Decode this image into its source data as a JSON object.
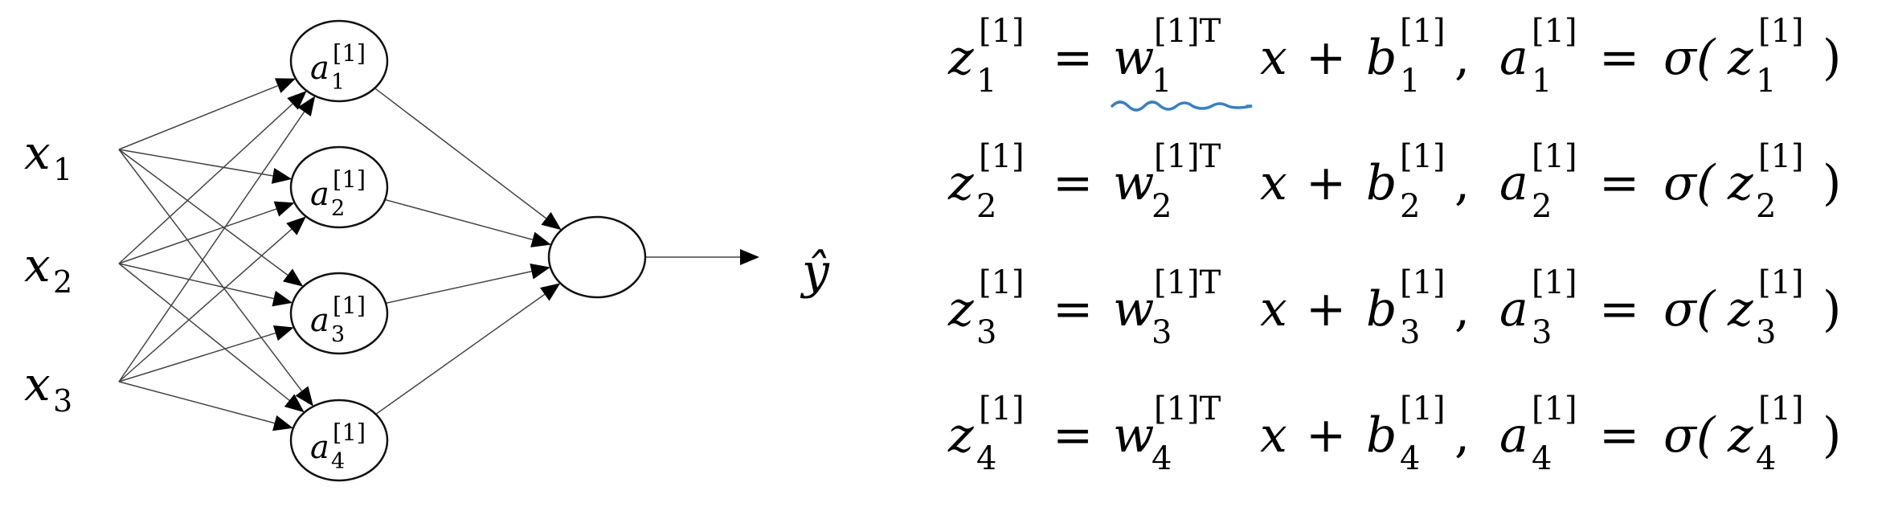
{
  "colors": {
    "ink": "#000000",
    "edge": "#444444",
    "underline": "#3a7fc2"
  },
  "network": {
    "inputs": [
      {
        "base": "x",
        "sub": "1"
      },
      {
        "base": "x",
        "sub": "2"
      },
      {
        "base": "x",
        "sub": "3"
      }
    ],
    "hidden_nodes": [
      {
        "base": "a",
        "sup": "[1]",
        "sub": "1"
      },
      {
        "base": "a",
        "sup": "[1]",
        "sub": "2"
      },
      {
        "base": "a",
        "sup": "[1]",
        "sub": "3"
      },
      {
        "base": "a",
        "sup": "[1]",
        "sub": "4"
      }
    ],
    "output_node": "",
    "output_label": "ŷ"
  },
  "equations": {
    "rows": [
      {
        "z": "z",
        "z_sup": "[1]",
        "z_sub": "1",
        "eq1": "=",
        "w": "w",
        "w_sup": "[1]T",
        "w_sub": "1",
        "x": "x",
        "plus": "+",
        "b": "b",
        "b_sup": "[1]",
        "b_sub": "1",
        "comma": ",",
        "a": "a",
        "a_sup": "[1]",
        "a_sub": "1",
        "eq2": "=",
        "sigma_open": "σ(",
        "iz": "z",
        "iz_sup": "[1]",
        "iz_sub": "1",
        "close": ")"
      },
      {
        "z": "z",
        "z_sup": "[1]",
        "z_sub": "2",
        "eq1": "=",
        "w": "w",
        "w_sup": "[1]T",
        "w_sub": "2",
        "x": "x",
        "plus": "+",
        "b": "b",
        "b_sup": "[1]",
        "b_sub": "2",
        "comma": ",",
        "a": "a",
        "a_sup": "[1]",
        "a_sub": "2",
        "eq2": "=",
        "sigma_open": "σ(",
        "iz": "z",
        "iz_sup": "[1]",
        "iz_sub": "2",
        "close": ")"
      },
      {
        "z": "z",
        "z_sup": "[1]",
        "z_sub": "3",
        "eq1": "=",
        "w": "w",
        "w_sup": "[1]T",
        "w_sub": "3",
        "x": "x",
        "plus": "+",
        "b": "b",
        "b_sup": "[1]",
        "b_sub": "3",
        "comma": ",",
        "a": "a",
        "a_sup": "[1]",
        "a_sub": "3",
        "eq2": "=",
        "sigma_open": "σ(",
        "iz": "z",
        "iz_sup": "[1]",
        "iz_sub": "3",
        "close": ")"
      },
      {
        "z": "z",
        "z_sup": "[1]",
        "z_sub": "4",
        "eq1": "=",
        "w": "w",
        "w_sup": "[1]T",
        "w_sub": "4",
        "x": "x",
        "plus": "+",
        "b": "b",
        "b_sup": "[1]",
        "b_sub": "4",
        "comma": ",",
        "a": "a",
        "a_sup": "[1]",
        "a_sub": "4",
        "eq2": "=",
        "sigma_open": "σ(",
        "iz": "z",
        "iz_sup": "[1]",
        "iz_sub": "4",
        "close": ")"
      }
    ]
  }
}
